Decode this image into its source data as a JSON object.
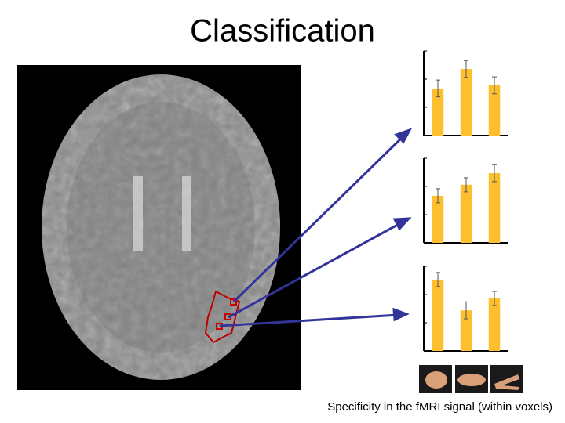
{
  "title": "Classification",
  "caption": "Specificity in the  fMRI signal (within voxels)",
  "chart_data": [
    {
      "type": "bar",
      "categories": [
        null,
        null,
        null
      ],
      "values": [
        1.67,
        2.36,
        1.78
      ],
      "errors": [
        0.3,
        0.3,
        0.3
      ],
      "color": "#fdbf2d",
      "ylim": [
        0,
        3
      ],
      "yticks": [
        0,
        1,
        2,
        3
      ]
    },
    {
      "type": "bar",
      "categories": [
        null,
        null,
        null
      ],
      "values": [
        1.67,
        2.06,
        2.47
      ],
      "errors": [
        0.25,
        0.25,
        0.3
      ],
      "color": "#fdbf2d",
      "ylim": [
        0,
        3
      ],
      "yticks": [
        0,
        1,
        2,
        3
      ]
    },
    {
      "type": "bar",
      "categories": [
        null,
        null,
        null
      ],
      "values": [
        2.53,
        1.44,
        1.86
      ],
      "errors": [
        0.25,
        0.3,
        0.25
      ],
      "color": "#fdbf2d",
      "ylim": [
        0,
        3
      ],
      "yticks": [
        0,
        1,
        2,
        3
      ]
    }
  ]
}
